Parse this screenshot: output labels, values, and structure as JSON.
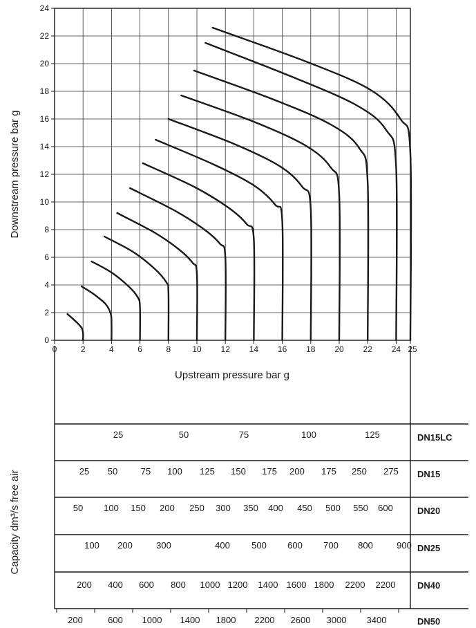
{
  "chart_data": {
    "type": "line",
    "xlabel": "Upstream pressure bar g",
    "ylabel": "Downstream pressure bar g",
    "xlim": [
      0,
      25
    ],
    "ylim": [
      0,
      24
    ],
    "x_ticks": [
      "0",
      "2",
      "4",
      "6",
      "8",
      "10",
      "12",
      "14",
      "16",
      "18",
      "20",
      "22",
      "24",
      "25"
    ],
    "y_ticks": [
      "0",
      "2",
      "4",
      "6",
      "8",
      "10",
      "12",
      "14",
      "16",
      "18",
      "20",
      "22",
      "24"
    ],
    "grid": true,
    "series": [
      {
        "points": [
          [
            0.9,
            1.9
          ],
          [
            1.5,
            1.35
          ],
          [
            1.9,
            0.9
          ],
          [
            2,
            0.5
          ],
          [
            2,
            0
          ]
        ]
      },
      {
        "points": [
          [
            1.9,
            3.9
          ],
          [
            2.8,
            3.3
          ],
          [
            3.6,
            2.6
          ],
          [
            3.95,
            1.9
          ],
          [
            4,
            1.2
          ],
          [
            4,
            0
          ]
        ]
      },
      {
        "points": [
          [
            2.6,
            5.7
          ],
          [
            4,
            4.9
          ],
          [
            5.2,
            3.9
          ],
          [
            5.85,
            3.1
          ],
          [
            6,
            2.4
          ],
          [
            6,
            0
          ]
        ]
      },
      {
        "points": [
          [
            3.5,
            7.5
          ],
          [
            5.5,
            6.4
          ],
          [
            7,
            5.2
          ],
          [
            7.85,
            4.2
          ],
          [
            8,
            3.5
          ],
          [
            8,
            0
          ]
        ]
      },
      {
        "points": [
          [
            4.4,
            9.2
          ],
          [
            7,
            7.8
          ],
          [
            8.7,
            6.6
          ],
          [
            9.7,
            5.6
          ],
          [
            10,
            4.8
          ],
          [
            10,
            0
          ]
        ]
      },
      {
        "points": [
          [
            5.3,
            11
          ],
          [
            8.4,
            9.4
          ],
          [
            10.4,
            8.1
          ],
          [
            11.6,
            7
          ],
          [
            12,
            6
          ],
          [
            12,
            0
          ]
        ]
      },
      {
        "points": [
          [
            6.2,
            12.8
          ],
          [
            9.8,
            11.1
          ],
          [
            12.2,
            9.6
          ],
          [
            13.5,
            8.4
          ],
          [
            14,
            7.3
          ],
          [
            14,
            0
          ]
        ]
      },
      {
        "points": [
          [
            7.1,
            14.5
          ],
          [
            11.2,
            12.7
          ],
          [
            14,
            11.2
          ],
          [
            15.5,
            9.8
          ],
          [
            16,
            8.6
          ],
          [
            16,
            0
          ]
        ]
      },
      {
        "points": [
          [
            8,
            16
          ],
          [
            12.6,
            14.2
          ],
          [
            15.8,
            12.6
          ],
          [
            17.4,
            11.1
          ],
          [
            18,
            9.5
          ],
          [
            18,
            0
          ]
        ]
      },
      {
        "points": [
          [
            8.9,
            17.7
          ],
          [
            14,
            15.8
          ],
          [
            17.6,
            14.1
          ],
          [
            19.4,
            12.5
          ],
          [
            20,
            10.5
          ],
          [
            20,
            0
          ]
        ]
      },
      {
        "points": [
          [
            9.8,
            19.5
          ],
          [
            15.4,
            17.4
          ],
          [
            19.4,
            15.6
          ],
          [
            21.4,
            13.9
          ],
          [
            22,
            11.4
          ],
          [
            22,
            0
          ]
        ]
      },
      {
        "points": [
          [
            10.6,
            21.5
          ],
          [
            16.8,
            19
          ],
          [
            21.2,
            17
          ],
          [
            23.3,
            15.2
          ],
          [
            24,
            12.5
          ],
          [
            24,
            0
          ]
        ]
      },
      {
        "points": [
          [
            11.1,
            22.6
          ],
          [
            17.8,
            20.1
          ],
          [
            22.2,
            18.1
          ],
          [
            24.3,
            16
          ],
          [
            25,
            13.5
          ],
          [
            25,
            0
          ]
        ]
      }
    ],
    "capacity_ylabel": "Capacity dm³/s free air",
    "capacity_scales": [
      {
        "name": "DN15LC",
        "labels": [
          "25",
          "50",
          "75",
          "100",
          "125"
        ]
      },
      {
        "name": "DN15",
        "labels": [
          "25",
          "50",
          "75",
          "100",
          "125",
          "150",
          "175",
          "200",
          "175",
          "250",
          "275"
        ]
      },
      {
        "name": "DN20",
        "labels": [
          "50",
          "100",
          "150",
          "200",
          "250",
          "300",
          "350",
          "400",
          "450",
          "500",
          "550",
          "600"
        ]
      },
      {
        "name": "DN25",
        "labels": [
          "100",
          "200",
          "300",
          "400",
          "500",
          "600",
          "700",
          "800",
          "900"
        ]
      },
      {
        "name": "DN40",
        "labels": [
          "200",
          "400",
          "600",
          "800",
          "1000",
          "1200",
          "1400",
          "1600",
          "1800",
          "2200",
          "2200"
        ]
      },
      {
        "name": "DN50",
        "labels": [
          "200",
          "600",
          "1000",
          "1400",
          "1800",
          "2200",
          "2600",
          "3000",
          "3400"
        ]
      }
    ]
  }
}
